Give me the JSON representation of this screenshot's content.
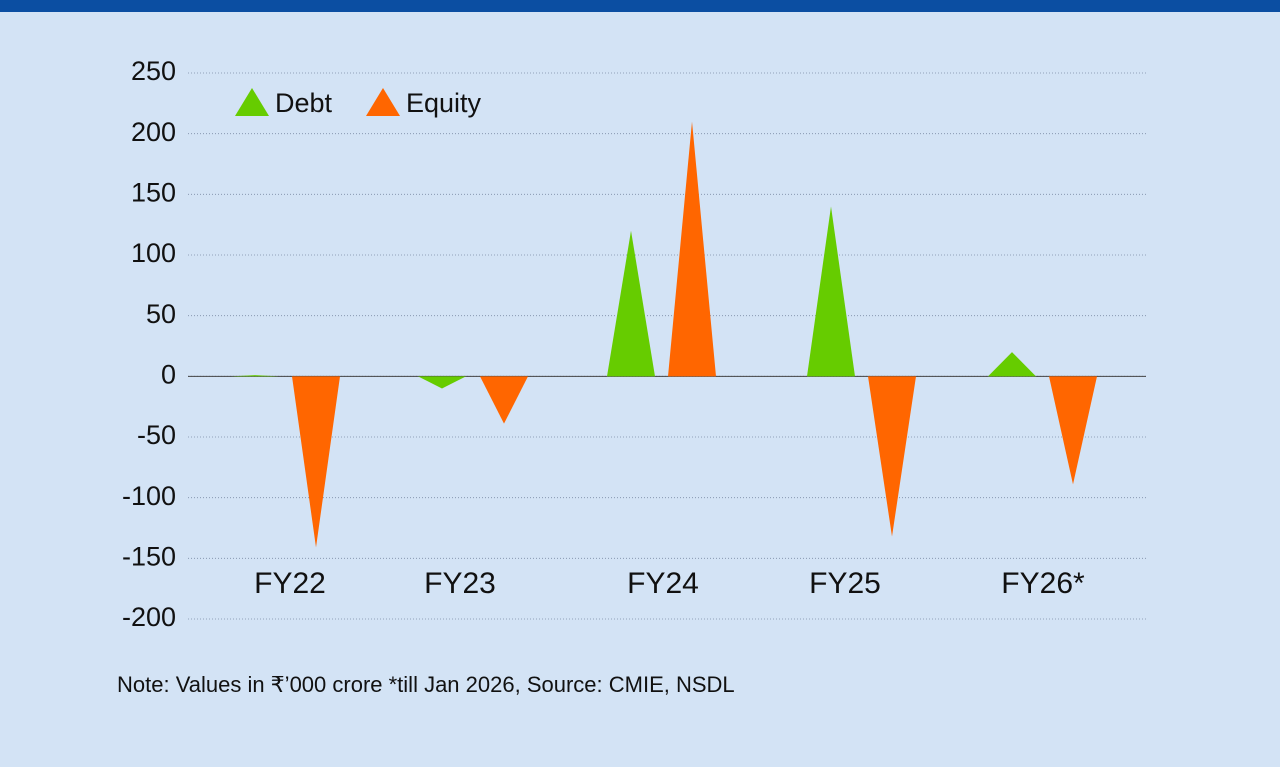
{
  "chart_data": {
    "type": "triangle-bar",
    "categories": [
      "FY22",
      "FY23",
      "FY24",
      "FY25",
      "FY26*"
    ],
    "series": [
      {
        "name": "Debt",
        "color": "#66cc00",
        "values": [
          1,
          -10,
          120,
          140,
          20
        ]
      },
      {
        "name": "Equity",
        "color": "#ff6600",
        "values": [
          -141,
          -39,
          210,
          -132,
          -89
        ]
      }
    ],
    "ylim": [
      -200,
      250
    ],
    "yticks": [
      -200,
      -150,
      -100,
      -50,
      0,
      50,
      100,
      150,
      200,
      250
    ],
    "grid": true,
    "legend": "top-left",
    "note": "Note: Values in ₹’000 crore *till Jan 2026, Source: CMIE, NSDL"
  }
}
